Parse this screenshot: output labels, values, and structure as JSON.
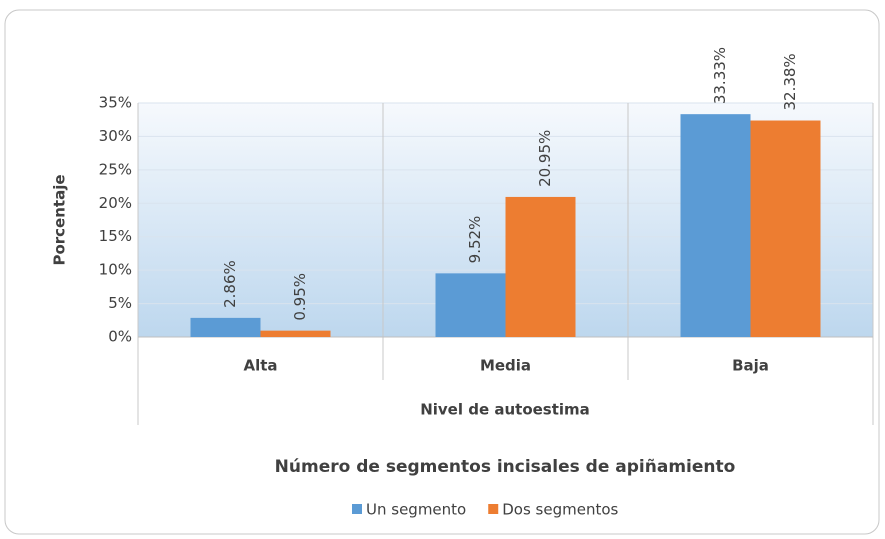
{
  "chart_data": {
    "type": "bar",
    "categories": [
      "Alta",
      "Media",
      "Baja"
    ],
    "x_label": "Nivel de autoestima",
    "y_label": "Porcentaje",
    "legend_title": "Número de segmentos incisales de apiñamiento",
    "series": [
      {
        "name": "Un segmento",
        "color": "#5b9bd5",
        "values": [
          2.86,
          9.52,
          33.33
        ],
        "value_labels": [
          "2.86%",
          "9.52%",
          "33.33%"
        ]
      },
      {
        "name": "Dos segmentos",
        "color": "#ed7d31",
        "values": [
          0.95,
          20.95,
          32.38
        ],
        "value_labels": [
          "0.95%",
          "20.95%",
          "32.38%"
        ]
      }
    ],
    "ylim": [
      0,
      35
    ],
    "yticks": [
      {
        "value": 0,
        "label": "0%"
      },
      {
        "value": 5,
        "label": "5%"
      },
      {
        "value": 10,
        "label": "10%"
      },
      {
        "value": 15,
        "label": "15%"
      },
      {
        "value": 20,
        "label": "20%"
      },
      {
        "value": 25,
        "label": "25%"
      },
      {
        "value": 30,
        "label": "30%"
      },
      {
        "value": 35,
        "label": "35%"
      }
    ],
    "grid": true,
    "legend": "bottom"
  }
}
